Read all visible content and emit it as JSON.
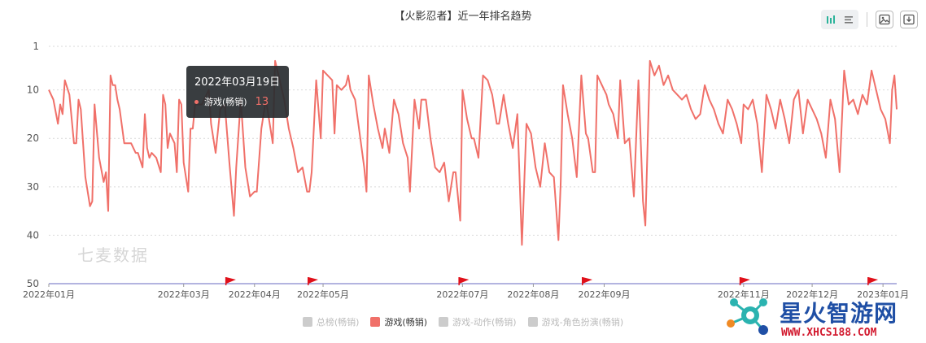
{
  "chart_data": {
    "type": "line",
    "title": "【火影忍者】近一年排名趋势",
    "y_inverted": true,
    "ylim": [
      1,
      50
    ],
    "yticks": [
      1,
      10,
      20,
      30,
      40,
      50
    ],
    "xlim": [
      "2022-01-01",
      "2023-01-07"
    ],
    "xticks": [
      {
        "date": "2022-01-01",
        "label": "2022年01月"
      },
      {
        "date": "2022-03-01",
        "label": "2022年03月"
      },
      {
        "date": "2022-04-01",
        "label": "2022年04月"
      },
      {
        "date": "2022-05-01",
        "label": "2022年05月"
      },
      {
        "date": "2022-07-01",
        "label": "2022年07月"
      },
      {
        "date": "2022-08-01",
        "label": "2022年08月"
      },
      {
        "date": "2022-09-01",
        "label": "2022年09月"
      },
      {
        "date": "2022-11-01",
        "label": "2022年11月"
      },
      {
        "date": "2022-12-01",
        "label": "2022年12月"
      },
      {
        "date": "2023-01-01",
        "label": "2023年01月"
      }
    ],
    "grid": true,
    "legend_position": "bottom",
    "series": [
      {
        "name": "游戏(畅销)",
        "color": "#f07069",
        "active": true,
        "points": [
          [
            "2022-01-01",
            10
          ],
          [
            "2022-01-03",
            12
          ],
          [
            "2022-01-05",
            17
          ],
          [
            "2022-01-06",
            13
          ],
          [
            "2022-01-07",
            15
          ],
          [
            "2022-01-08",
            8
          ],
          [
            "2022-01-10",
            11
          ],
          [
            "2022-01-12",
            21
          ],
          [
            "2022-01-13",
            21
          ],
          [
            "2022-01-14",
            12
          ],
          [
            "2022-01-15",
            14
          ],
          [
            "2022-01-17",
            28
          ],
          [
            "2022-01-19",
            34
          ],
          [
            "2022-01-20",
            33
          ],
          [
            "2022-01-21",
            13
          ],
          [
            "2022-01-23",
            24
          ],
          [
            "2022-01-25",
            29
          ],
          [
            "2022-01-26",
            27
          ],
          [
            "2022-01-27",
            35
          ],
          [
            "2022-01-28",
            7
          ],
          [
            "2022-01-29",
            9
          ],
          [
            "2022-01-30",
            9
          ],
          [
            "2022-01-31",
            12
          ],
          [
            "2022-02-01",
            14
          ],
          [
            "2022-02-03",
            21
          ],
          [
            "2022-02-06",
            21
          ],
          [
            "2022-02-08",
            23
          ],
          [
            "2022-02-09",
            23
          ],
          [
            "2022-02-11",
            26
          ],
          [
            "2022-02-12",
            15
          ],
          [
            "2022-02-13",
            22
          ],
          [
            "2022-02-14",
            24
          ],
          [
            "2022-02-15",
            23
          ],
          [
            "2022-02-17",
            24
          ],
          [
            "2022-02-19",
            27
          ],
          [
            "2022-02-20",
            11
          ],
          [
            "2022-02-21",
            13
          ],
          [
            "2022-02-22",
            22
          ],
          [
            "2022-02-23",
            19
          ],
          [
            "2022-02-25",
            21
          ],
          [
            "2022-02-26",
            27
          ],
          [
            "2022-02-27",
            12
          ],
          [
            "2022-02-28",
            13
          ],
          [
            "2022-03-01",
            25
          ],
          [
            "2022-03-03",
            31
          ],
          [
            "2022-03-04",
            18
          ],
          [
            "2022-03-05",
            18
          ],
          [
            "2022-03-06",
            13
          ],
          [
            "2022-03-09",
            13
          ],
          [
            "2022-03-10",
            12
          ],
          [
            "2022-03-12",
            10
          ],
          [
            "2022-03-13",
            17
          ],
          [
            "2022-03-15",
            23
          ],
          [
            "2022-03-17",
            14
          ],
          [
            "2022-03-19",
            13
          ],
          [
            "2022-03-21",
            25
          ],
          [
            "2022-03-23",
            36
          ],
          [
            "2022-03-24",
            26
          ],
          [
            "2022-03-26",
            12
          ],
          [
            "2022-03-28",
            26
          ],
          [
            "2022-03-30",
            32
          ],
          [
            "2022-04-01",
            31
          ],
          [
            "2022-04-02",
            31
          ],
          [
            "2022-04-04",
            18
          ],
          [
            "2022-04-06",
            12
          ],
          [
            "2022-04-08",
            18
          ],
          [
            "2022-04-09",
            21
          ],
          [
            "2022-04-10",
            4
          ],
          [
            "2022-04-12",
            8
          ],
          [
            "2022-04-14",
            12
          ],
          [
            "2022-04-16",
            18
          ],
          [
            "2022-04-18",
            22
          ],
          [
            "2022-04-20",
            27
          ],
          [
            "2022-04-22",
            26
          ],
          [
            "2022-04-24",
            31
          ],
          [
            "2022-04-25",
            31
          ],
          [
            "2022-04-26",
            27
          ],
          [
            "2022-04-28",
            8
          ],
          [
            "2022-04-30",
            20
          ],
          [
            "2022-05-01",
            6
          ],
          [
            "2022-05-03",
            7
          ],
          [
            "2022-05-05",
            8
          ],
          [
            "2022-05-06",
            19
          ],
          [
            "2022-05-07",
            9
          ],
          [
            "2022-05-09",
            10
          ],
          [
            "2022-05-11",
            9
          ],
          [
            "2022-05-12",
            7
          ],
          [
            "2022-05-13",
            10
          ],
          [
            "2022-05-15",
            12
          ],
          [
            "2022-05-17",
            19
          ],
          [
            "2022-05-19",
            26
          ],
          [
            "2022-05-20",
            31
          ],
          [
            "2022-05-21",
            7
          ],
          [
            "2022-05-23",
            13
          ],
          [
            "2022-05-25",
            18
          ],
          [
            "2022-05-27",
            22
          ],
          [
            "2022-05-28",
            18
          ],
          [
            "2022-05-30",
            23
          ],
          [
            "2022-06-01",
            12
          ],
          [
            "2022-06-03",
            15
          ],
          [
            "2022-06-05",
            21
          ],
          [
            "2022-06-07",
            24
          ],
          [
            "2022-06-08",
            31
          ],
          [
            "2022-06-10",
            12
          ],
          [
            "2022-06-12",
            18
          ],
          [
            "2022-06-13",
            12
          ],
          [
            "2022-06-15",
            12
          ],
          [
            "2022-06-17",
            20
          ],
          [
            "2022-06-19",
            26
          ],
          [
            "2022-06-21",
            27
          ],
          [
            "2022-06-23",
            25
          ],
          [
            "2022-06-25",
            33
          ],
          [
            "2022-06-27",
            27
          ],
          [
            "2022-06-28",
            27
          ],
          [
            "2022-06-30",
            37
          ],
          [
            "2022-07-01",
            10
          ],
          [
            "2022-07-03",
            16
          ],
          [
            "2022-07-05",
            20
          ],
          [
            "2022-07-06",
            20
          ],
          [
            "2022-07-08",
            24
          ],
          [
            "2022-07-10",
            7
          ],
          [
            "2022-07-12",
            8
          ],
          [
            "2022-07-14",
            11
          ],
          [
            "2022-07-16",
            17
          ],
          [
            "2022-07-17",
            17
          ],
          [
            "2022-07-19",
            11
          ],
          [
            "2022-07-21",
            17
          ],
          [
            "2022-07-23",
            22
          ],
          [
            "2022-07-25",
            15
          ],
          [
            "2022-07-27",
            42
          ],
          [
            "2022-07-29",
            17
          ],
          [
            "2022-07-31",
            19
          ],
          [
            "2022-08-02",
            26
          ],
          [
            "2022-08-04",
            30
          ],
          [
            "2022-08-06",
            21
          ],
          [
            "2022-08-08",
            27
          ],
          [
            "2022-08-10",
            28
          ],
          [
            "2022-08-12",
            41
          ],
          [
            "2022-08-13",
            29
          ],
          [
            "2022-08-14",
            9
          ],
          [
            "2022-08-16",
            15
          ],
          [
            "2022-08-18",
            20
          ],
          [
            "2022-08-20",
            28
          ],
          [
            "2022-08-22",
            7
          ],
          [
            "2022-08-24",
            19
          ],
          [
            "2022-08-25",
            20
          ],
          [
            "2022-08-27",
            27
          ],
          [
            "2022-08-28",
            27
          ],
          [
            "2022-08-29",
            7
          ],
          [
            "2022-08-31",
            9
          ],
          [
            "2022-09-02",
            11
          ],
          [
            "2022-09-03",
            13
          ],
          [
            "2022-09-05",
            15
          ],
          [
            "2022-09-07",
            20
          ],
          [
            "2022-09-08",
            8
          ],
          [
            "2022-09-10",
            21
          ],
          [
            "2022-09-12",
            20
          ],
          [
            "2022-09-14",
            32
          ],
          [
            "2022-09-16",
            8
          ],
          [
            "2022-09-18",
            33
          ],
          [
            "2022-09-19",
            38
          ],
          [
            "2022-09-21",
            4
          ],
          [
            "2022-09-23",
            7
          ],
          [
            "2022-09-25",
            5
          ],
          [
            "2022-09-27",
            9
          ],
          [
            "2022-09-29",
            7
          ],
          [
            "2022-10-01",
            10
          ],
          [
            "2022-10-03",
            11
          ],
          [
            "2022-10-05",
            12
          ],
          [
            "2022-10-07",
            11
          ],
          [
            "2022-10-09",
            14
          ],
          [
            "2022-10-11",
            16
          ],
          [
            "2022-10-13",
            15
          ],
          [
            "2022-10-15",
            9
          ],
          [
            "2022-10-17",
            12
          ],
          [
            "2022-10-19",
            14
          ],
          [
            "2022-10-21",
            17
          ],
          [
            "2022-10-23",
            19
          ],
          [
            "2022-10-25",
            12
          ],
          [
            "2022-10-27",
            14
          ],
          [
            "2022-10-29",
            17
          ],
          [
            "2022-10-31",
            21
          ],
          [
            "2022-11-01",
            13
          ],
          [
            "2022-11-03",
            14
          ],
          [
            "2022-11-05",
            12
          ],
          [
            "2022-11-07",
            17
          ],
          [
            "2022-11-09",
            27
          ],
          [
            "2022-11-11",
            11
          ],
          [
            "2022-11-13",
            14
          ],
          [
            "2022-11-15",
            18
          ],
          [
            "2022-11-17",
            12
          ],
          [
            "2022-11-19",
            16
          ],
          [
            "2022-11-21",
            21
          ],
          [
            "2022-11-23",
            12
          ],
          [
            "2022-11-25",
            10
          ],
          [
            "2022-11-27",
            19
          ],
          [
            "2022-11-29",
            12
          ],
          [
            "2022-12-01",
            14
          ],
          [
            "2022-12-03",
            16
          ],
          [
            "2022-12-05",
            19
          ],
          [
            "2022-12-07",
            24
          ],
          [
            "2022-12-09",
            12
          ],
          [
            "2022-12-11",
            16
          ],
          [
            "2022-12-13",
            27
          ],
          [
            "2022-12-15",
            6
          ],
          [
            "2022-12-17",
            13
          ],
          [
            "2022-12-19",
            12
          ],
          [
            "2022-12-21",
            15
          ],
          [
            "2022-12-23",
            11
          ],
          [
            "2022-12-25",
            13
          ],
          [
            "2022-12-27",
            6
          ],
          [
            "2022-12-29",
            10
          ],
          [
            "2022-12-31",
            14
          ],
          [
            "2023-01-02",
            16
          ],
          [
            "2023-01-04",
            21
          ],
          [
            "2023-01-05",
            10
          ],
          [
            "2023-01-06",
            7
          ],
          [
            "2023-01-07",
            14
          ]
        ]
      }
    ],
    "markers": [
      "2022-03-21",
      "2022-04-26",
      "2022-07-01",
      "2022-08-24",
      "2022-11-01",
      "2022-12-27"
    ],
    "tooltip": {
      "date": "2022年03月19日",
      "series": "游戏(畅销)",
      "value": "13"
    }
  },
  "legend": [
    {
      "label": "总榜(畅销)",
      "active": false
    },
    {
      "label": "游戏(畅销)",
      "active": true
    },
    {
      "label": "游戏-动作(畅销)",
      "active": false
    },
    {
      "label": "游戏-角色扮演(畅销)",
      "active": false
    }
  ],
  "watermark": "七麦数据",
  "brand": {
    "name": "星火智游网",
    "url": "WWW.XHCS188.COM"
  },
  "colors": {
    "line": "#f07069",
    "grid": "#d9d9d9",
    "flag": "#e0101a",
    "axis": "#9a9cd6"
  },
  "icons": [
    "chart-toggle-icon",
    "list-icon",
    "image-icon",
    "download-icon"
  ]
}
